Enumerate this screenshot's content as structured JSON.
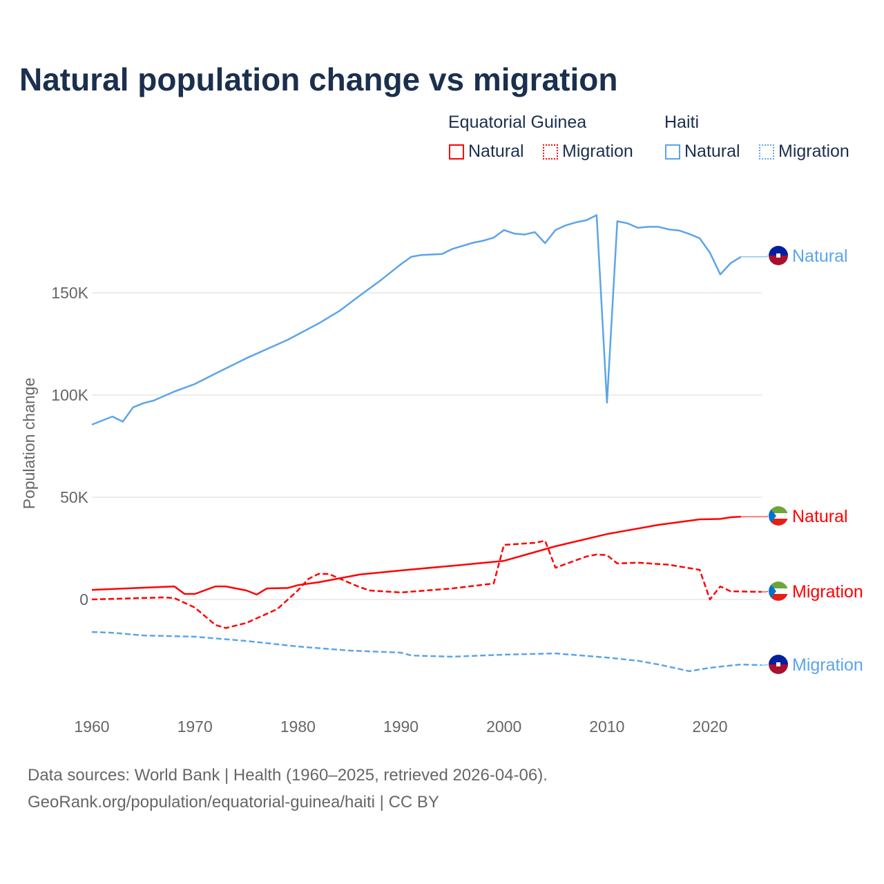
{
  "title": "Natural population change vs migration",
  "legend": {
    "groups": [
      {
        "country": "Equatorial Guinea",
        "items": [
          "Natural",
          "Migration"
        ],
        "color": "#ff0000"
      },
      {
        "country": "Haiti",
        "items": [
          "Natural",
          "Migration"
        ],
        "color": "#5ba4ea"
      }
    ]
  },
  "footer": {
    "line1": "Data sources: World Bank | Health (1960–2025, retrieved 2026-04-06).",
    "line2": "GeoRank.org/population/equatorial-guinea/haiti | CC BY"
  },
  "chart_data": {
    "type": "line",
    "title": "Natural population change vs migration",
    "xlabel": "",
    "ylabel": "Population change",
    "xlim": [
      1960,
      2025
    ],
    "ylim": [
      -50000,
      200000
    ],
    "xticks": [
      "1960",
      "1970",
      "1980",
      "1990",
      "2000",
      "2010",
      "2020"
    ],
    "yticks": [
      {
        "v": 0,
        "label": "0"
      },
      {
        "v": 50000,
        "label": "50K"
      },
      {
        "v": 100000,
        "label": "100K"
      },
      {
        "v": 150000,
        "label": "150K"
      }
    ],
    "series": [
      {
        "name": "Haiti Natural",
        "label": "Natural",
        "color": "#5ba4ea",
        "dash": false,
        "flag": "haiti",
        "x": [
          1960,
          1962,
          1963,
          1964,
          1965,
          1966,
          1968,
          1970,
          1972,
          1975,
          1979,
          1982,
          1984,
          1986,
          1988,
          1990,
          1991,
          1992,
          1994,
          1995,
          1997,
          1998,
          1999,
          2000,
          2001,
          2002,
          2003,
          2004,
          2005,
          2006,
          2007,
          2008,
          2009,
          2010,
          2011,
          2012,
          2013,
          2014,
          2015,
          2016,
          2017,
          2018,
          2019,
          2020,
          2021,
          2022,
          2023
        ],
        "y": [
          85500,
          89500,
          87000,
          94000,
          96000,
          97300,
          101700,
          105400,
          110500,
          118000,
          127000,
          135000,
          141000,
          148600,
          156000,
          164000,
          167600,
          168500,
          169000,
          171500,
          174500,
          175500,
          177000,
          180700,
          179000,
          178500,
          179700,
          174300,
          180700,
          183000,
          184500,
          185500,
          188000,
          96300,
          185000,
          184000,
          181800,
          182300,
          182300,
          181000,
          180500,
          178800,
          176700,
          169600,
          159000,
          164500,
          167600
        ]
      },
      {
        "name": "Haiti Migration",
        "label": "Migration",
        "color": "#5ba4ea",
        "dash": true,
        "flag": "haiti",
        "x": [
          1960,
          1962,
          1965,
          1970,
          1975,
          1980,
          1985,
          1990,
          1991,
          1995,
          2000,
          2005,
          2010,
          2013,
          2015,
          2018,
          2020,
          2023,
          2025
        ],
        "y": [
          -15900,
          -16300,
          -17600,
          -18200,
          -20300,
          -23000,
          -25000,
          -26000,
          -27400,
          -28000,
          -27000,
          -26400,
          -28400,
          -30000,
          -31800,
          -35100,
          -33400,
          -31800,
          -32100
        ]
      },
      {
        "name": "Equatorial Guinea Natural",
        "label": "Natural",
        "color": "#ff0000",
        "dash": false,
        "flag": "eq-guinea",
        "x": [
          1960,
          1968,
          1969,
          1970,
          1972,
          1973,
          1975,
          1976,
          1977,
          1979,
          1980,
          1982,
          1984,
          1986,
          1990,
          1995,
          2000,
          2005,
          2010,
          2015,
          2019,
          2021,
          2022,
          2023
        ],
        "y": [
          4700,
          6400,
          2700,
          2700,
          6400,
          6400,
          4400,
          2400,
          5400,
          5600,
          7000,
          8400,
          10300,
          12200,
          14200,
          16500,
          18900,
          26000,
          32000,
          36500,
          39200,
          39400,
          40200,
          40500
        ]
      },
      {
        "name": "Equatorial Guinea Migration",
        "label": "Migration",
        "color": "#ff0000",
        "dash": true,
        "flag": "eq-guinea",
        "x": [
          1960,
          1967,
          1968,
          1970,
          1972,
          1973,
          1975,
          1978,
          1980,
          1981,
          1982,
          1983,
          1984,
          1986,
          1987,
          1990,
          1995,
          1999,
          2000,
          2003,
          2004,
          2005,
          2008,
          2009,
          2010,
          2011,
          2013,
          2016,
          2019,
          2020,
          2021,
          2022,
          2025
        ],
        "y": [
          0,
          1000,
          700,
          -4000,
          -12500,
          -14000,
          -11500,
          -4700,
          4400,
          10000,
          12500,
          12500,
          10300,
          6000,
          4400,
          3400,
          5400,
          7800,
          26700,
          27700,
          28700,
          15500,
          21000,
          22000,
          21700,
          17600,
          18000,
          17000,
          14500,
          0,
          6400,
          4000,
          3700
        ]
      }
    ]
  }
}
